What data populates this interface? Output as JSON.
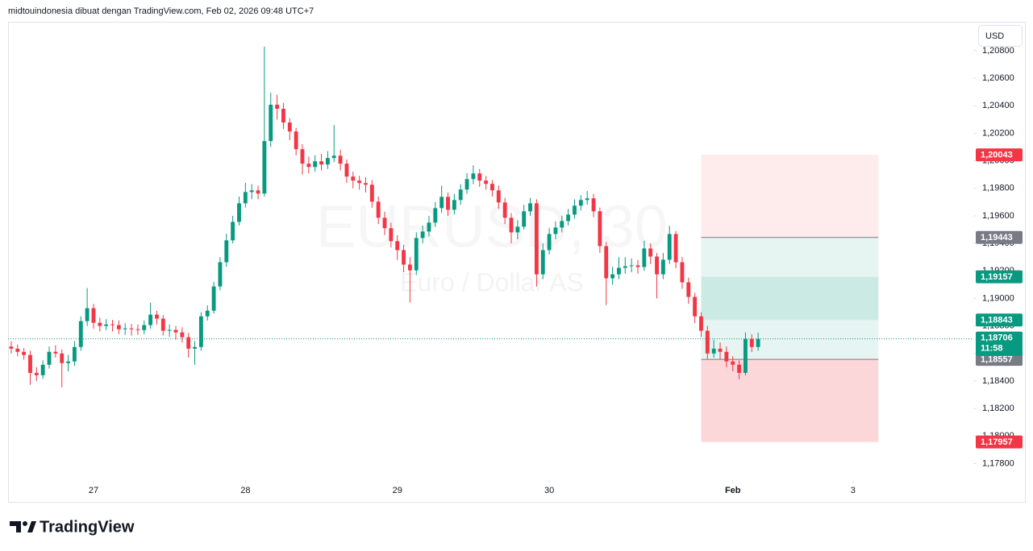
{
  "header": {
    "attribution": "midtouindonesia dibuat dengan TradingView.com, Feb 02, 2026 09:48 UTC+7"
  },
  "currency": "USD",
  "chart_data": {
    "type": "candlestick",
    "watermark": {
      "symbol": "EURUSD, 30",
      "description": "Euro / Dollar AS"
    },
    "up_color": "#089981",
    "down_color": "#f23645",
    "x": [
      0,
      2,
      4,
      6,
      8,
      10,
      12,
      14,
      16,
      18,
      20,
      22,
      24,
      26,
      28,
      30,
      32,
      34,
      36,
      38,
      40,
      42,
      44,
      46,
      48,
      50,
      52,
      54,
      56,
      58,
      60,
      62,
      64,
      66,
      68,
      70,
      72,
      74,
      76,
      78,
      80,
      82,
      84,
      86,
      88,
      90,
      92,
      94,
      96,
      98,
      100,
      102,
      104,
      106,
      108,
      110,
      112,
      114,
      116,
      118,
      120,
      122,
      124,
      126,
      128,
      130,
      132,
      134,
      136,
      138,
      140,
      142,
      144,
      146,
      148,
      150,
      152,
      154,
      156,
      158,
      160,
      162,
      164,
      166,
      168,
      170,
      172,
      174,
      176,
      178,
      180,
      182,
      184,
      186,
      188,
      190,
      192,
      194,
      196,
      198,
      200,
      202,
      204,
      206,
      208,
      210,
      212,
      214,
      216,
      218,
      220,
      222,
      224,
      226,
      228,
      230,
      232,
      234,
      236
    ],
    "open": [
      1.1865,
      1.18635,
      1.18612,
      1.18589,
      1.18459,
      1.18442,
      1.18518,
      1.18612,
      1.186,
      1.1853,
      1.18542,
      1.18647,
      1.18835,
      1.18929,
      1.18823,
      1.188,
      1.18811,
      1.18806,
      1.18776,
      1.18782,
      1.18776,
      1.1877,
      1.18806,
      1.18882,
      1.18853,
      1.18765,
      1.18771,
      1.18753,
      1.18718,
      1.18635,
      1.18647,
      1.1887,
      1.18911,
      1.19087,
      1.19263,
      1.19422,
      1.19556,
      1.19691,
      1.19773,
      1.19785,
      1.19762,
      1.20143,
      1.20407,
      1.20378,
      1.20278,
      1.20213,
      1.20084,
      1.19979,
      1.19955,
      1.19996,
      1.19973,
      1.2002,
      1.20037,
      1.19979,
      1.19885,
      1.19856,
      1.19838,
      1.19826,
      1.19703,
      1.19586,
      1.1951,
      1.19416,
      1.19351,
      1.19246,
      1.19204,
      1.19439,
      1.19486,
      1.19551,
      1.19656,
      1.19738,
      1.19644,
      1.19715,
      1.19791,
      1.19867,
      1.19908,
      1.19856,
      1.19832,
      1.19785,
      1.19697,
      1.19586,
      1.1948,
      1.19521,
      1.19633,
      1.19691,
      1.19175,
      1.19351,
      1.19468,
      1.19515,
      1.19562,
      1.19609,
      1.19674,
      1.19715,
      1.19727,
      1.19633,
      1.1938,
      1.19146,
      1.19175,
      1.19222,
      1.19234,
      1.1924,
      1.19228,
      1.19363,
      1.19304,
      1.19175,
      1.19281,
      1.19468,
      1.19263,
      1.19117,
      1.19011,
      1.1887,
      1.18765,
      1.186,
      1.18635,
      1.18612,
      1.18542,
      1.18518,
      1.18459,
      1.18706,
      1.18647
    ],
    "high": [
      1.1869,
      1.18665,
      1.1864,
      1.1862,
      1.185,
      1.1855,
      1.1865,
      1.1866,
      1.1863,
      1.1859,
      1.1869,
      1.1887,
      1.19075,
      1.1896,
      1.1886,
      1.1885,
      1.18845,
      1.1884,
      1.1882,
      1.18815,
      1.1881,
      1.1884,
      1.1897,
      1.1891,
      1.1888,
      1.1881,
      1.188,
      1.1879,
      1.1875,
      1.1869,
      1.189,
      1.1895,
      1.1912,
      1.193,
      1.1947,
      1.196,
      1.1974,
      1.1984,
      1.1983,
      1.1982,
      1.20829,
      1.20495,
      1.2048,
      1.2042,
      1.2031,
      1.2024,
      1.2012,
      1.2003,
      1.2004,
      1.2005,
      1.2007,
      1.2026,
      1.2008,
      1.2001,
      1.1992,
      1.1989,
      1.1988,
      1.1986,
      1.1974,
      1.1963,
      1.1955,
      1.1946,
      1.1939,
      1.193,
      1.1948,
      1.1953,
      1.196,
      1.197,
      1.1982,
      1.1977,
      1.1976,
      1.1983,
      1.1991,
      1.19967,
      1.1994,
      1.1989,
      1.1986,
      1.1982,
      1.1973,
      1.1962,
      1.1957,
      1.1968,
      1.1973,
      1.1972,
      1.194,
      1.1951,
      1.1956,
      1.196,
      1.1965,
      1.1972,
      1.1975,
      1.1978,
      1.1976,
      1.1966,
      1.1941,
      1.1923,
      1.193,
      1.193,
      1.1929,
      1.1928,
      1.1942,
      1.194,
      1.1933,
      1.1933,
      1.19527,
      1.1949,
      1.193,
      1.1915,
      1.1904,
      1.189,
      1.188,
      1.187,
      1.1868,
      1.1865,
      1.1858,
      1.1855,
      1.18753,
      1.1874,
      1.1875
    ],
    "low": [
      1.186,
      1.1858,
      1.18555,
      1.18372,
      1.184,
      1.18415,
      1.1849,
      1.1857,
      1.18354,
      1.1847,
      1.1851,
      1.1862,
      1.188,
      1.1878,
      1.1876,
      1.1877,
      1.1876,
      1.1874,
      1.18735,
      1.1873,
      1.18735,
      1.1874,
      1.1878,
      1.1881,
      1.1873,
      1.1872,
      1.187,
      1.1868,
      1.1857,
      1.18518,
      1.1862,
      1.1884,
      1.1889,
      1.1906,
      1.1923,
      1.194,
      1.1953,
      1.1966,
      1.1972,
      1.1972,
      1.1974,
      1.201,
      1.203,
      1.2023,
      1.2015,
      1.2004,
      1.199,
      1.1991,
      1.1992,
      1.1993,
      1.1994,
      1.1999,
      1.1993,
      1.1984,
      1.198,
      1.1979,
      1.1977,
      1.1966,
      1.1954,
      1.1946,
      1.1937,
      1.1928,
      1.1919,
      1.1897,
      1.1917,
      1.194,
      1.1945,
      1.1952,
      1.1962,
      1.196,
      1.1961,
      1.1968,
      1.1976,
      1.1983,
      1.1981,
      1.1979,
      1.1974,
      1.1965,
      1.1954,
      1.194,
      1.1943,
      1.195,
      1.196,
      1.19087,
      1.1914,
      1.1932,
      1.1943,
      1.1948,
      1.1953,
      1.1958,
      1.1964,
      1.1968,
      1.1959,
      1.1933,
      1.18952,
      1.191,
      1.1914,
      1.1918,
      1.1919,
      1.1918,
      1.192,
      1.1925,
      1.19,
      1.1914,
      1.1925,
      1.1922,
      1.1907,
      1.1896,
      1.1882,
      1.1872,
      1.1856,
      1.1857,
      1.1856,
      1.185,
      1.1847,
      1.18413,
      1.1844,
      1.1861,
      1.1862
    ],
    "close": [
      1.18635,
      1.18612,
      1.18589,
      1.18459,
      1.18442,
      1.18518,
      1.18612,
      1.186,
      1.1853,
      1.18542,
      1.18647,
      1.18835,
      1.18929,
      1.18823,
      1.188,
      1.18811,
      1.18806,
      1.18776,
      1.18782,
      1.18776,
      1.1877,
      1.18806,
      1.18882,
      1.18853,
      1.18765,
      1.18771,
      1.18753,
      1.18718,
      1.18635,
      1.18647,
      1.1887,
      1.18911,
      1.19087,
      1.19263,
      1.19422,
      1.19556,
      1.19691,
      1.19773,
      1.19785,
      1.19762,
      1.20143,
      1.20407,
      1.20378,
      1.20278,
      1.20213,
      1.20084,
      1.19979,
      1.19955,
      1.19996,
      1.19973,
      1.2002,
      1.20037,
      1.19979,
      1.19885,
      1.19856,
      1.19838,
      1.19826,
      1.19703,
      1.19586,
      1.1951,
      1.19416,
      1.19351,
      1.19246,
      1.19204,
      1.19439,
      1.19486,
      1.19551,
      1.19656,
      1.19738,
      1.19644,
      1.19715,
      1.19791,
      1.19867,
      1.19908,
      1.19856,
      1.19832,
      1.19785,
      1.19697,
      1.19586,
      1.1948,
      1.19521,
      1.19633,
      1.19691,
      1.19175,
      1.19351,
      1.19468,
      1.19515,
      1.19562,
      1.19609,
      1.19674,
      1.19715,
      1.19727,
      1.19633,
      1.1938,
      1.19146,
      1.19175,
      1.19222,
      1.19234,
      1.1924,
      1.19228,
      1.19363,
      1.19304,
      1.19175,
      1.19281,
      1.19468,
      1.19263,
      1.19117,
      1.19011,
      1.1887,
      1.18765,
      1.186,
      1.18635,
      1.18612,
      1.18542,
      1.18518,
      1.18459,
      1.18706,
      1.18647,
      1.18706
    ],
    "xlim": [
      -1,
      304
    ],
    "xticks": [
      {
        "value": 26,
        "label": "27"
      },
      {
        "value": 74,
        "label": "28"
      },
      {
        "value": 122,
        "label": "29"
      },
      {
        "value": 170,
        "label": "30"
      },
      {
        "value": 228,
        "label": "Feb"
      },
      {
        "value": 266,
        "label": "3"
      }
    ],
    "ylim": [
      1.1768,
      1.2101
    ],
    "yticks": [
      {
        "value": 1.178,
        "label": "1,17800"
      },
      {
        "value": 1.18,
        "label": "1,18000"
      },
      {
        "value": 1.182,
        "label": "1,18200"
      },
      {
        "value": 1.184,
        "label": "1,18400"
      },
      {
        "value": 1.186,
        "label": "1,18600"
      },
      {
        "value": 1.188,
        "label": "1,18800"
      },
      {
        "value": 1.19,
        "label": "1,19000"
      },
      {
        "value": 1.192,
        "label": "1,19200"
      },
      {
        "value": 1.194,
        "label": "1,19400"
      },
      {
        "value": 1.196,
        "label": "1,19600"
      },
      {
        "value": 1.198,
        "label": "1,19800"
      },
      {
        "value": 1.2,
        "label": "1,20000"
      },
      {
        "value": 1.202,
        "label": "1,20200"
      },
      {
        "value": 1.204,
        "label": "1,20400"
      },
      {
        "value": 1.206,
        "label": "1,20600"
      },
      {
        "value": 1.208,
        "label": "1,20800"
      }
    ],
    "zone_xlim": [
      218,
      274
    ],
    "zones": [
      {
        "top": 1.20043,
        "bottom": 1.19443,
        "color": "rgba(242,54,69,0.10)"
      },
      {
        "top": 1.19443,
        "bottom": 1.18557,
        "color": "rgba(8,153,129,0.10)",
        "border": "#787b86"
      },
      {
        "top": 1.19157,
        "bottom": 1.18843,
        "color": "rgba(8,153,129,0.12)"
      },
      {
        "top": 1.18557,
        "bottom": 1.17957,
        "color": "rgba(242,54,69,0.20)"
      }
    ],
    "price_labels": [
      {
        "value": 1.20043,
        "label": "1,20043",
        "color": "#f23645"
      },
      {
        "value": 1.19443,
        "label": "1,19443",
        "color": "#787b86"
      },
      {
        "value": 1.19157,
        "label": "1,19157",
        "color": "#089981"
      },
      {
        "value": 1.18843,
        "label": "1,18843",
        "color": "#089981"
      },
      {
        "value": 1.18557,
        "label": "1,18557",
        "color": "#787b86"
      },
      {
        "value": 1.17957,
        "label": "1,17957",
        "color": "#f23645"
      }
    ],
    "current_price": {
      "value": 1.18706,
      "label": "1,18706",
      "countdown": "11:58",
      "color": "#089981"
    }
  },
  "footer": {
    "brand": "TradingView"
  }
}
